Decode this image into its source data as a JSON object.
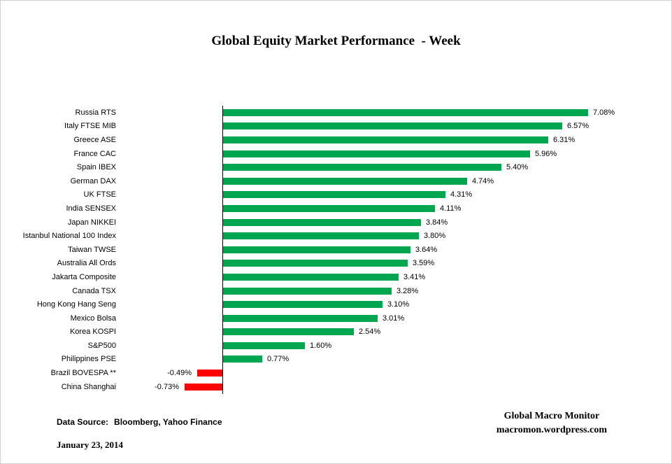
{
  "title": "Global Equity Market Performance  - Week",
  "colors": {
    "positive": "#00A550",
    "negative": "#FF0000",
    "axis": "#000000",
    "text": "#000000"
  },
  "chart_data": {
    "type": "bar",
    "orientation": "horizontal",
    "title": "Global Equity Market Performance  - Week",
    "xlabel": "",
    "ylabel": "",
    "xlim": [
      -1,
      8
    ],
    "grid": false,
    "legend": false,
    "unit": "percent",
    "categories": [
      "Russia RTS",
      "Italy FTSE MIB",
      "Greece ASE",
      "France CAC",
      "Spain IBEX",
      "German DAX",
      "UK FTSE",
      "India SENSEX",
      "Japan NIKKEI",
      "Istanbul National 100 Index",
      "Taiwan TWSE",
      "Australia All Ords",
      "Jakarta Composite",
      "Canada TSX",
      "Hong Kong Hang Seng",
      "Mexico Bolsa",
      "Korea KOSPI",
      "S&P500",
      "Philippines PSE",
      "Brazil BOVESPA **",
      "China Shanghai"
    ],
    "values": [
      7.08,
      6.57,
      6.31,
      5.96,
      5.4,
      4.74,
      4.31,
      4.11,
      3.84,
      3.8,
      3.64,
      3.59,
      3.41,
      3.28,
      3.1,
      3.01,
      2.54,
      1.6,
      0.77,
      -0.49,
      -0.73
    ],
    "value_labels": [
      "7.08%",
      "6.57%",
      "6.31%",
      "5.96%",
      "5.40%",
      "4.74%",
      "4.31%",
      "4.11%",
      "3.84%",
      "3.80%",
      "3.64%",
      "3.59%",
      "3.41%",
      "3.28%",
      "3.10%",
      "3.01%",
      "2.54%",
      "1.60%",
      "0.77%",
      "-0.49%",
      "-0.73%"
    ]
  },
  "footer": {
    "data_source_label": "Data Source:",
    "data_source_value": "Bloomberg, Yahoo Finance",
    "date": "January 23, 2014",
    "brand_line1": "Global Macro Monitor",
    "brand_line2": "macromon.wordpress.com"
  }
}
